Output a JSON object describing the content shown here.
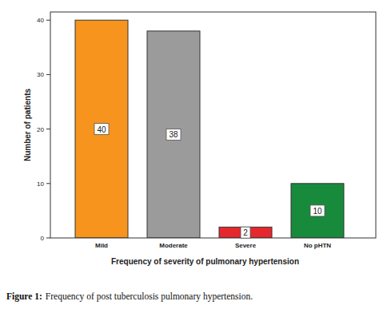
{
  "chart_data": {
    "type": "bar",
    "x_label": "Frequency of severity of pulmonary hypertension",
    "y_label": "Number of patients",
    "categories": [
      "Mild",
      "Moderate",
      "Severe",
      "No pHTN"
    ],
    "values": [
      40,
      38,
      2,
      10
    ],
    "colors": [
      "#f7941d",
      "#9b9b9b",
      "#e5282e",
      "#178a3c"
    ],
    "ylim": [
      0,
      41.5
    ],
    "yticks": [
      0,
      10,
      20,
      30,
      40
    ],
    "grid": false,
    "data_labels": true,
    "figure_label": "Figure 1:",
    "caption": "Frequency of post tuberculosis pulmonary hypertension."
  }
}
